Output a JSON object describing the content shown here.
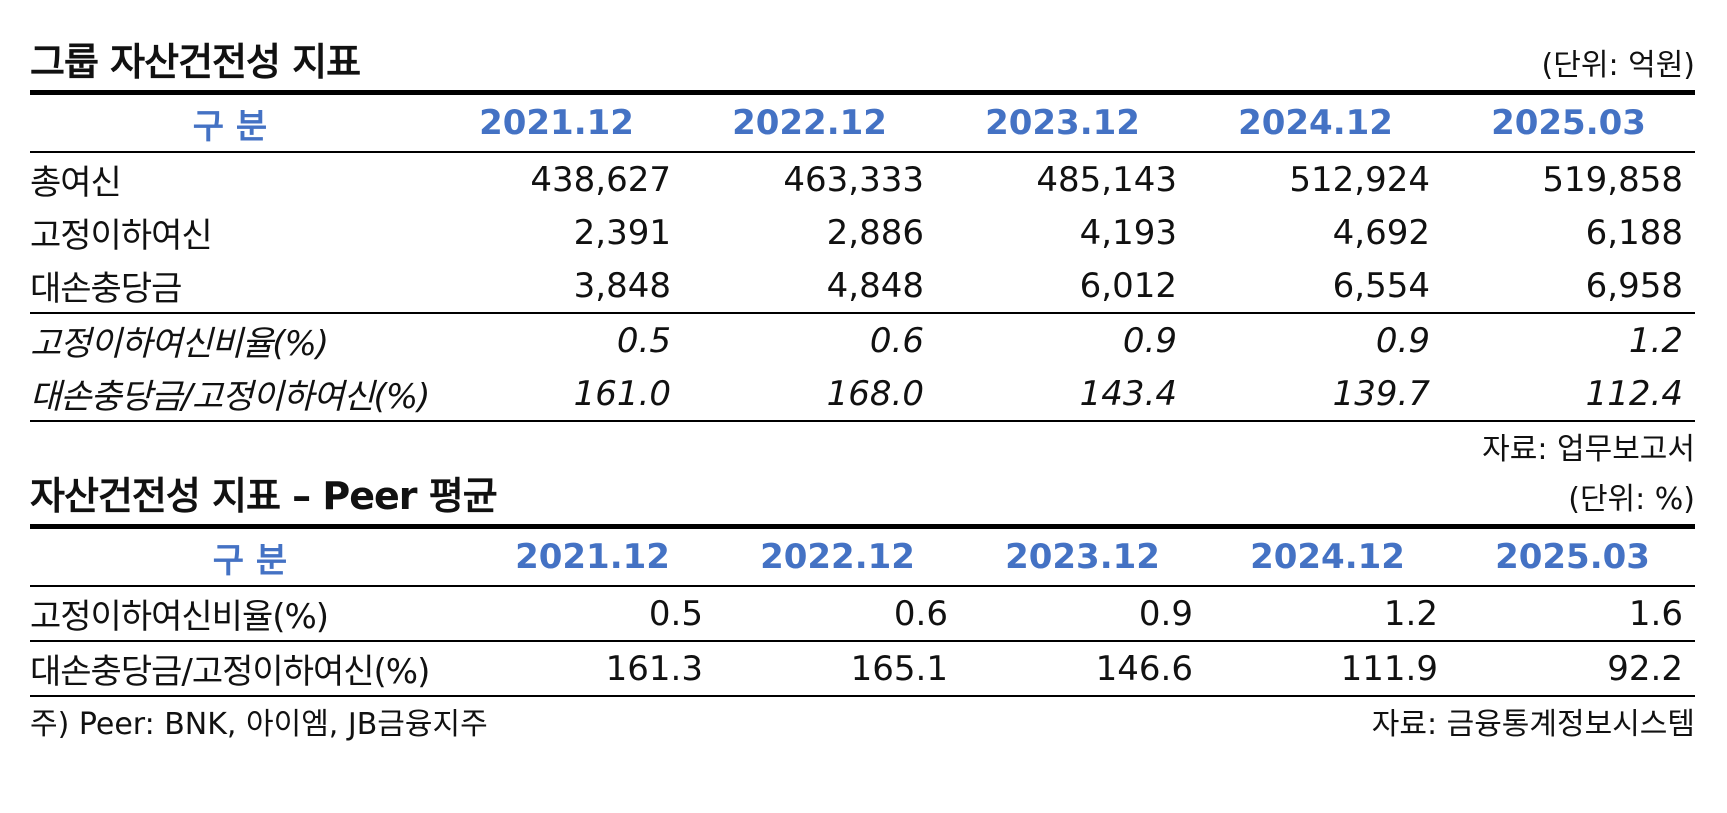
{
  "table1": {
    "title": "그룹 자산건전성 지표",
    "unit": "(단위: 억원)",
    "headers": [
      "구 분",
      "2021.12",
      "2022.12",
      "2023.12",
      "2024.12",
      "2025.03"
    ],
    "rows": [
      {
        "label": "총여신",
        "values": [
          "438,627",
          "463,333",
          "485,143",
          "512,924",
          "519,858"
        ]
      },
      {
        "label": "고정이하여신",
        "values": [
          "2,391",
          "2,886",
          "4,193",
          "4,692",
          "6,188"
        ]
      },
      {
        "label": "대손충당금",
        "values": [
          "3,848",
          "4,848",
          "6,012",
          "6,554",
          "6,958"
        ]
      },
      {
        "label": "고정이하여신비율(%)",
        "values": [
          "0.5",
          "0.6",
          "0.9",
          "0.9",
          "1.2"
        ]
      },
      {
        "label": "대손충당금/고정이하여신(%)",
        "values": [
          "161.0",
          "168.0",
          "143.4",
          "139.7",
          "112.4"
        ]
      }
    ],
    "source": "자료: 업무보고서"
  },
  "table2": {
    "title": "자산건전성 지표 – Peer 평균",
    "unit": "(단위: %)",
    "headers": [
      "구 분",
      "2021.12",
      "2022.12",
      "2023.12",
      "2024.12",
      "2025.03"
    ],
    "rows": [
      {
        "label": "고정이하여신비율(%)",
        "values": [
          "0.5",
          "0.6",
          "0.9",
          "1.2",
          "1.6"
        ]
      },
      {
        "label": "대손충당금/고정이하여신(%)",
        "values": [
          "161.3",
          "165.1",
          "146.6",
          "111.9",
          "92.2"
        ]
      }
    ],
    "note": "주) Peer: BNK, 아이엠, JB금융지주",
    "source": "자료: 금융통계정보시스템"
  },
  "colors": {
    "header_text": "#4472c4",
    "rule": "#000000"
  }
}
